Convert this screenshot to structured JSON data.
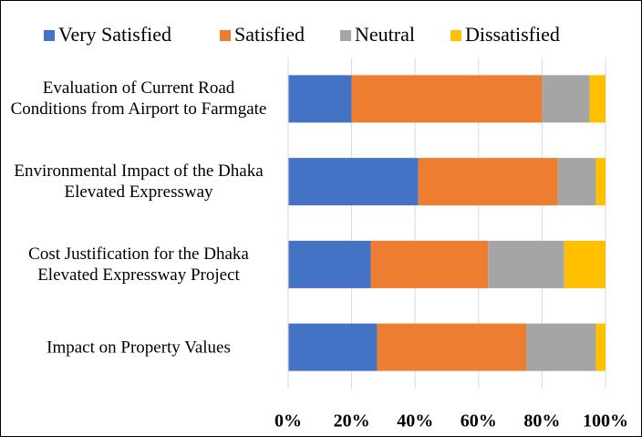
{
  "chart_data": {
    "type": "stacked_barh",
    "categories": [
      "Evaluation of Current Road Conditions from Airport to Farmgate",
      "Environmental Impact of the Dhaka Elevated Expressway",
      "Cost Justification for the Dhaka Elevated Expressway Project",
      "Impact on Property Values"
    ],
    "series": [
      {
        "name": "Very Satisfied",
        "color": "#4472c4",
        "values": [
          20,
          41,
          26,
          28
        ]
      },
      {
        "name": "Satisfied",
        "color": "#ed7d31",
        "values": [
          60,
          44,
          37,
          47
        ]
      },
      {
        "name": "Neutral",
        "color": "#a5a5a5",
        "values": [
          15,
          12,
          24,
          22
        ]
      },
      {
        "name": "Dissatisfied",
        "color": "#ffc000",
        "values": [
          5,
          3,
          13,
          3
        ]
      }
    ],
    "xlim": [
      0,
      100
    ],
    "xticks": [
      {
        "value": 0,
        "label": "0%"
      },
      {
        "value": 20,
        "label": "20%"
      },
      {
        "value": 40,
        "label": "40%"
      },
      {
        "value": 60,
        "label": "60%"
      },
      {
        "value": 80,
        "label": "80%"
      },
      {
        "value": 100,
        "label": "100%"
      }
    ],
    "grid": true,
    "legend": "top"
  }
}
